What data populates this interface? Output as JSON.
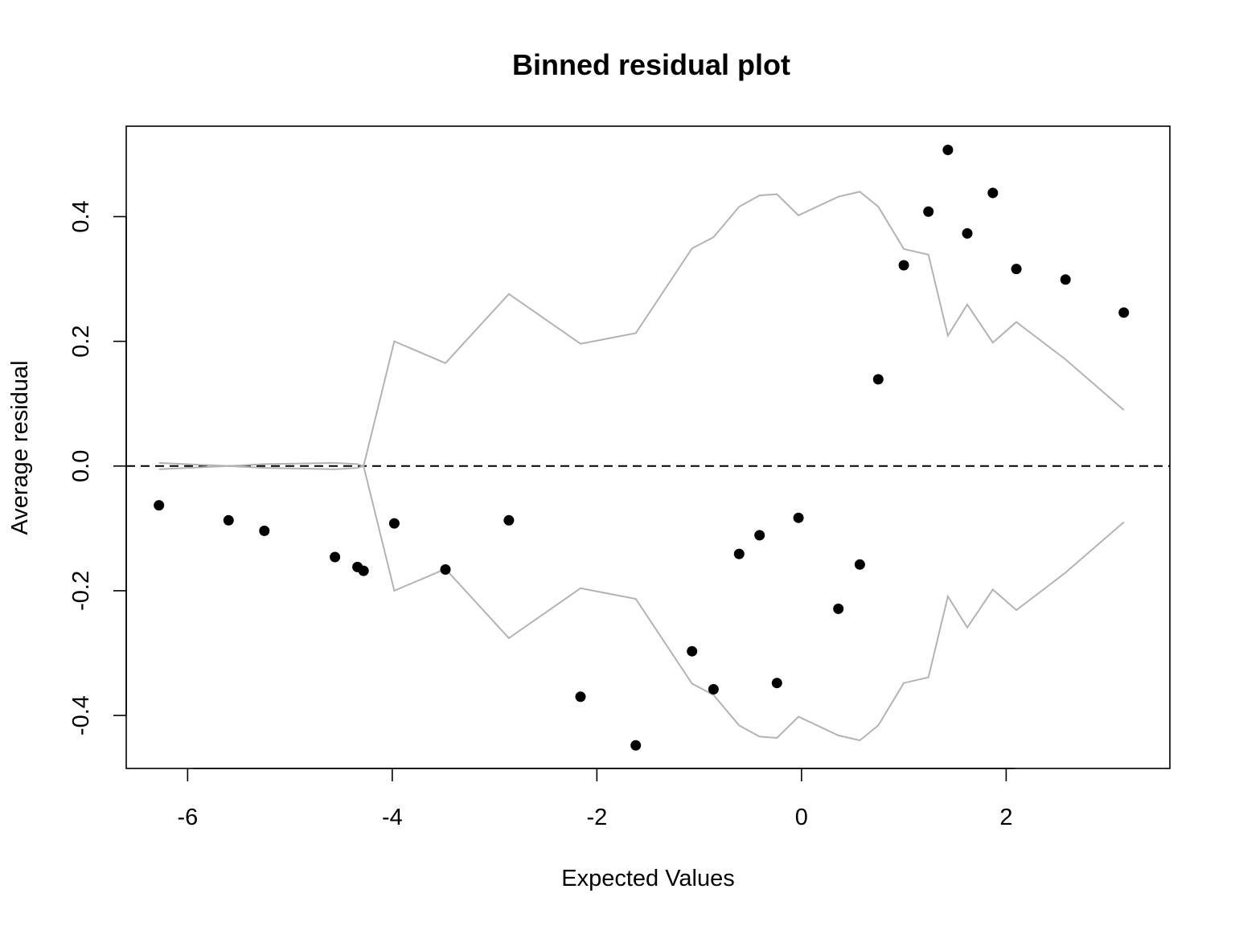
{
  "chart_data": {
    "type": "scatter",
    "title": "Binned residual plot",
    "xlabel": "Expected Values",
    "ylabel": "Average residual",
    "xlim": [
      -6.6,
      3.6
    ],
    "ylim": [
      -0.485,
      0.545
    ],
    "x_ticks": [
      -6,
      -4,
      -2,
      0,
      2
    ],
    "x_tick_labels": [
      "-6",
      "-4",
      "-2",
      "0",
      "2"
    ],
    "y_ticks": [
      -0.4,
      -0.2,
      0.0,
      0.2,
      0.4
    ],
    "y_tick_labels": [
      "-0.4",
      "-0.2",
      "0.0",
      "0.2",
      "0.4"
    ],
    "grid": false,
    "reference_line": {
      "y": 0,
      "style": "dashed",
      "color": "#000000"
    },
    "series": [
      {
        "type": "scatter",
        "color": "#000000",
        "x": [
          -6.28,
          -5.6,
          -5.25,
          -4.56,
          -4.34,
          -4.28,
          -3.98,
          -3.48,
          -2.86,
          -2.16,
          -1.62,
          -1.07,
          -0.86,
          -0.61,
          -0.41,
          -0.24,
          -0.03,
          0.36,
          0.57,
          0.75,
          1.0,
          1.24,
          1.43,
          1.62,
          1.87,
          2.1,
          2.58,
          3.15
        ],
        "y": [
          -0.063,
          -0.087,
          -0.104,
          -0.146,
          -0.162,
          -0.168,
          -0.092,
          -0.166,
          -0.087,
          -0.37,
          -0.448,
          -0.297,
          -0.358,
          -0.141,
          -0.111,
          -0.348,
          -0.083,
          -0.229,
          -0.158,
          0.139,
          0.322,
          0.408,
          0.507,
          0.373,
          0.438,
          0.316,
          0.299,
          0.246
        ]
      },
      {
        "type": "line",
        "color": "#b3b3b3",
        "x": [
          -6.28,
          -5.6,
          -5.25,
          -4.56,
          -4.34,
          -4.28,
          -3.98,
          -3.48,
          -2.86,
          -2.16,
          -1.62,
          -1.07,
          -0.86,
          -0.61,
          -0.41,
          -0.24,
          -0.03,
          0.36,
          0.57,
          0.75,
          1.0,
          1.24,
          1.43,
          1.62,
          1.87,
          2.1,
          2.58,
          3.15
        ],
        "y": [
          0.005,
          0.0,
          0.003,
          0.005,
          0.003,
          0.0,
          0.2,
          0.165,
          0.276,
          0.196,
          0.213,
          0.349,
          0.367,
          0.416,
          0.434,
          0.436,
          0.402,
          0.432,
          0.44,
          0.416,
          0.348,
          0.339,
          0.209,
          0.259,
          0.198,
          0.231,
          0.171,
          0.09
        ]
      },
      {
        "type": "line",
        "color": "#b3b3b3",
        "x": [
          -6.28,
          -5.6,
          -5.25,
          -4.56,
          -4.34,
          -4.28,
          -3.98,
          -3.48,
          -2.86,
          -2.16,
          -1.62,
          -1.07,
          -0.86,
          -0.61,
          -0.41,
          -0.24,
          -0.03,
          0.36,
          0.57,
          0.75,
          1.0,
          1.24,
          1.43,
          1.62,
          1.87,
          2.1,
          2.58,
          3.15
        ],
        "y": [
          -0.005,
          0.0,
          -0.003,
          -0.005,
          -0.003,
          0.0,
          -0.2,
          -0.165,
          -0.276,
          -0.196,
          -0.213,
          -0.349,
          -0.367,
          -0.416,
          -0.434,
          -0.436,
          -0.402,
          -0.432,
          -0.44,
          -0.416,
          -0.348,
          -0.339,
          -0.209,
          -0.259,
          -0.198,
          -0.231,
          -0.171,
          -0.09
        ]
      }
    ]
  }
}
